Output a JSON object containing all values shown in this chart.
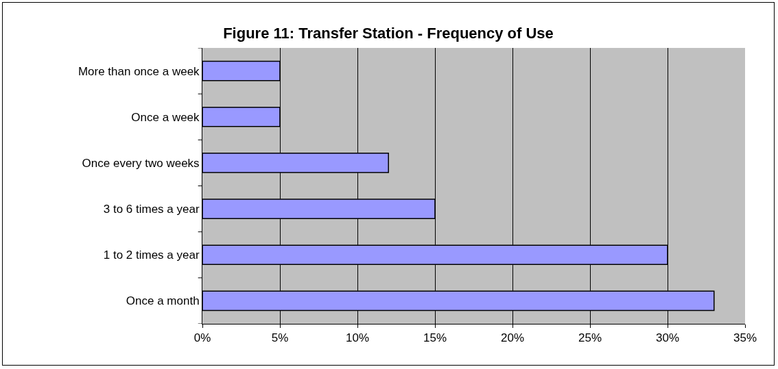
{
  "chart_data": {
    "type": "bar",
    "orientation": "horizontal",
    "title": "Figure 11: Transfer Station - Frequency of Use",
    "categories": [
      "More than once a week",
      "Once a week",
      "Once every two weeks",
      "3 to 6 times a year",
      "1 to 2 times a year",
      "Once a month"
    ],
    "values": [
      5,
      5,
      12,
      15,
      30,
      33
    ],
    "color": "#9999ff",
    "xlim": [
      0,
      35
    ],
    "xticks": [
      {
        "value": 0,
        "label": "0%"
      },
      {
        "value": 5,
        "label": "5%"
      },
      {
        "value": 10,
        "label": "10%"
      },
      {
        "value": 15,
        "label": "15%"
      },
      {
        "value": 20,
        "label": "20%"
      },
      {
        "value": 25,
        "label": "25%"
      },
      {
        "value": 30,
        "label": "30%"
      },
      {
        "value": 35,
        "label": "35%"
      }
    ],
    "grid": "x",
    "legend": false
  }
}
